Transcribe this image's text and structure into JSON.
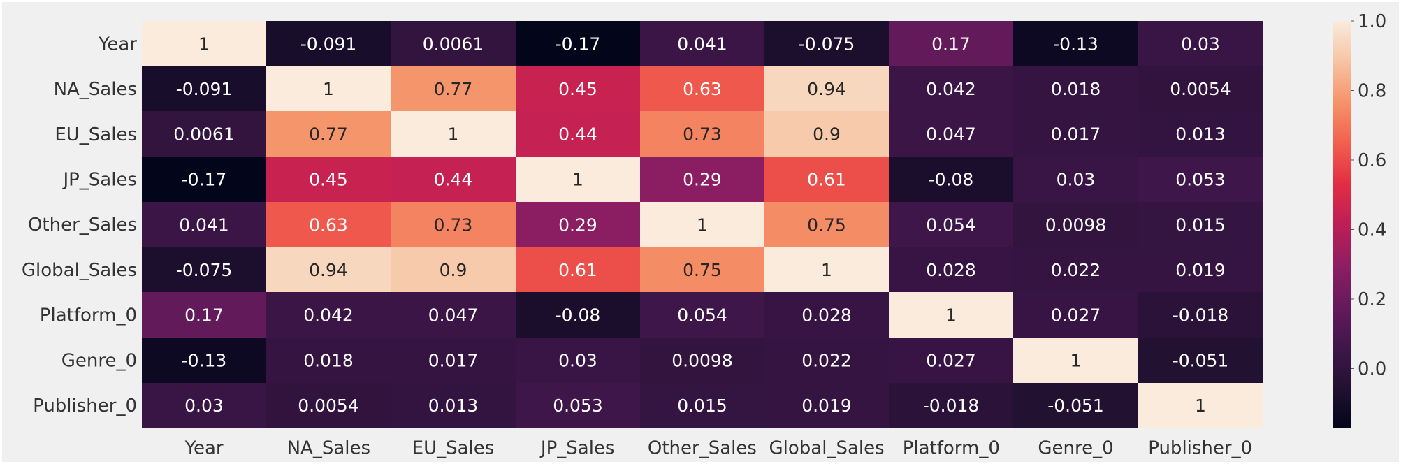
{
  "chart_data": {
    "type": "heatmap",
    "title": "",
    "xlabel": "",
    "ylabel": "",
    "x_categories": [
      "Year",
      "NA_Sales",
      "EU_Sales",
      "JP_Sales",
      "Other_Sales",
      "Global_Sales",
      "Platform_0",
      "Genre_0",
      "Publisher_0"
    ],
    "y_categories": [
      "Year",
      "NA_Sales",
      "EU_Sales",
      "JP_Sales",
      "Other_Sales",
      "Global_Sales",
      "Platform_0",
      "Genre_0",
      "Publisher_0"
    ],
    "values": [
      [
        1,
        -0.091,
        0.0061,
        -0.17,
        0.041,
        -0.075,
        0.17,
        -0.13,
        0.03
      ],
      [
        -0.091,
        1,
        0.77,
        0.45,
        0.63,
        0.94,
        0.042,
        0.018,
        0.0054
      ],
      [
        0.0061,
        0.77,
        1,
        0.44,
        0.73,
        0.9,
        0.047,
        0.017,
        0.013
      ],
      [
        -0.17,
        0.45,
        0.44,
        1,
        0.29,
        0.61,
        -0.08,
        0.03,
        0.053
      ],
      [
        0.041,
        0.63,
        0.73,
        0.29,
        1,
        0.75,
        0.054,
        0.0098,
        0.015
      ],
      [
        -0.075,
        0.94,
        0.9,
        0.61,
        0.75,
        1,
        0.028,
        0.022,
        0.019
      ],
      [
        0.17,
        0.042,
        0.047,
        -0.08,
        0.054,
        0.028,
        1,
        0.027,
        -0.018
      ],
      [
        -0.13,
        0.018,
        0.017,
        0.03,
        0.0098,
        0.022,
        0.027,
        1,
        -0.051
      ],
      [
        0.03,
        0.0054,
        0.013,
        0.053,
        0.015,
        0.019,
        -0.018,
        -0.051,
        1
      ]
    ],
    "colorbar": {
      "range": [
        -0.17,
        1.0
      ],
      "ticks": [
        0.0,
        0.2,
        0.4,
        0.6,
        0.8,
        1.0
      ],
      "tick_labels": [
        "0.0",
        "0.2",
        "0.4",
        "0.6",
        "0.8",
        "1.0"
      ]
    },
    "colormap": "rocket",
    "background_color": "#f0f0f0",
    "label_color": "#333333",
    "annotations": true
  }
}
